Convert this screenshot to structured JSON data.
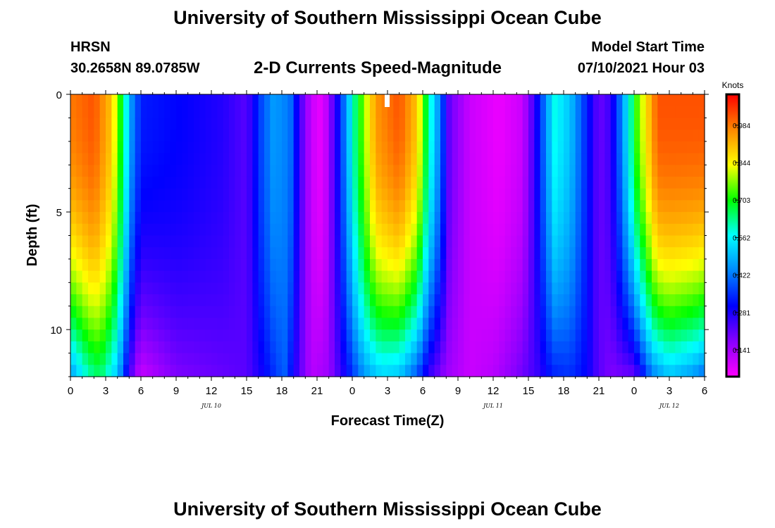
{
  "header": {
    "title": "University of Southern Mississippi Ocean Cube",
    "station": "HRSN",
    "coords": "30.2658N  89.0785W",
    "subtitle": "2-D Currents Speed-Magnitude",
    "model_start_label": "Model Start Time",
    "model_start_value": "07/10/2021 Hour 03"
  },
  "footer": {
    "title": "University of Southern Mississippi Ocean Cube"
  },
  "chart_data": {
    "type": "heatmap",
    "title": "2-D Currents Speed-Magnitude",
    "xlabel": "Forecast Time(Z)",
    "ylabel": "Depth (ft)",
    "x_unit": "hours from Jul 10 00Z",
    "x_range": [
      0,
      54
    ],
    "x_tick_values": [
      0,
      3,
      6,
      9,
      12,
      15,
      18,
      21,
      24,
      27,
      30,
      33,
      36,
      39,
      42,
      45,
      48,
      51,
      54
    ],
    "x_tick_labels": [
      "0",
      "3",
      "6",
      "9",
      "12",
      "15",
      "18",
      "21",
      "0",
      "3",
      "6",
      "9",
      "12",
      "15",
      "18",
      "21",
      "0",
      "3",
      "6"
    ],
    "date_labels": [
      {
        "text": "JUL 10",
        "x": 12
      },
      {
        "text": "JUL 11",
        "x": 36
      },
      {
        "text": "JUL 12",
        "x": 51
      }
    ],
    "y_range": [
      0,
      12
    ],
    "y_tick_values": [
      0,
      5,
      10
    ],
    "y_tick_labels": [
      "0",
      "5",
      "10"
    ],
    "colorbar": {
      "label": "Knots",
      "range": [
        0.04,
        1.1
      ],
      "tick_values": [
        0.141,
        0.281,
        0.422,
        0.562,
        0.703,
        0.844,
        0.984
      ],
      "tick_labels": [
        "0.141",
        "0.281",
        "0.422",
        "0.562",
        "0.703",
        "0.844",
        "0.984"
      ],
      "colors": [
        "#ff00ff",
        "#8800ff",
        "#0000ff",
        "#0088ff",
        "#00ffff",
        "#00ff00",
        "#ffff00",
        "#ff8800",
        "#ff0000"
      ]
    },
    "surface_profile": [
      [
        0,
        0.98
      ],
      [
        2,
        1.02
      ],
      [
        3.5,
        0.9
      ],
      [
        4.5,
        0.65
      ],
      [
        5.2,
        0.45
      ],
      [
        6,
        0.33
      ],
      [
        10,
        0.3
      ],
      [
        13,
        0.27
      ],
      [
        15,
        0.22
      ],
      [
        16.3,
        0.38
      ],
      [
        17.3,
        0.46
      ],
      [
        18.7,
        0.42
      ],
      [
        19.5,
        0.25
      ],
      [
        20.5,
        0.1
      ],
      [
        21.5,
        0.06
      ],
      [
        22.8,
        0.3
      ],
      [
        24.3,
        0.65
      ],
      [
        26,
        0.95
      ],
      [
        28,
        1.02
      ],
      [
        29.5,
        0.9
      ],
      [
        30.5,
        0.62
      ],
      [
        31.5,
        0.42
      ],
      [
        32.3,
        0.2
      ],
      [
        34,
        0.1
      ],
      [
        36.5,
        0.06
      ],
      [
        38.5,
        0.1
      ],
      [
        39.5,
        0.25
      ],
      [
        41.2,
        0.58
      ],
      [
        42.6,
        0.5
      ],
      [
        44,
        0.33
      ],
      [
        45,
        0.2
      ],
      [
        46,
        0.25
      ],
      [
        47,
        0.45
      ],
      [
        48.3,
        0.75
      ],
      [
        50,
        1.02
      ],
      [
        54,
        1.02
      ]
    ],
    "bottom_profile": [
      [
        0,
        0.45
      ],
      [
        1.5,
        0.6
      ],
      [
        2.5,
        0.65
      ],
      [
        4,
        0.5
      ],
      [
        4.8,
        0.3
      ],
      [
        5.5,
        0.15
      ],
      [
        6,
        0.1
      ],
      [
        9,
        0.18
      ],
      [
        12,
        0.2
      ],
      [
        15,
        0.22
      ],
      [
        16.5,
        0.3
      ],
      [
        18.2,
        0.4
      ],
      [
        19.5,
        0.22
      ],
      [
        20.5,
        0.12
      ],
      [
        22,
        0.15
      ],
      [
        23.5,
        0.3
      ],
      [
        25,
        0.45
      ],
      [
        26.5,
        0.52
      ],
      [
        28,
        0.5
      ],
      [
        29.5,
        0.38
      ],
      [
        30.5,
        0.25
      ],
      [
        32,
        0.15
      ],
      [
        34,
        0.1
      ],
      [
        36,
        0.12
      ],
      [
        38,
        0.18
      ],
      [
        39.8,
        0.25
      ],
      [
        41,
        0.33
      ],
      [
        42.5,
        0.35
      ],
      [
        44,
        0.3
      ],
      [
        45,
        0.22
      ],
      [
        46,
        0.18
      ],
      [
        48,
        0.2
      ],
      [
        49.5,
        0.42
      ],
      [
        51,
        0.5
      ],
      [
        53,
        0.45
      ],
      [
        54,
        0.4
      ]
    ]
  }
}
